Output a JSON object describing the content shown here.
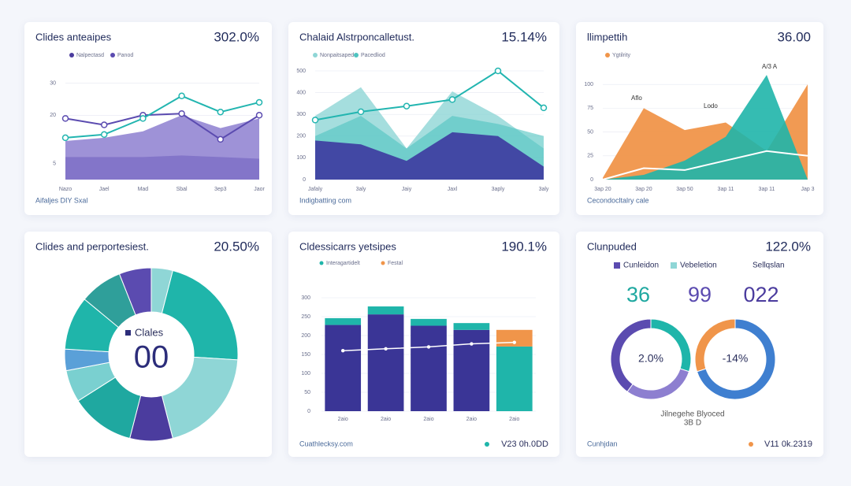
{
  "cards": [
    {
      "title": "Clides anteaipes",
      "metric": "302.0%",
      "footer": "Aifaljes DIY Sxal",
      "chart": {
        "type": "area",
        "ylim": [
          0,
          35
        ],
        "yticks": [
          30,
          20,
          5
        ],
        "grid": true,
        "categories": [
          "Nazo",
          "Jael",
          "Mad",
          "Sbal",
          "3ep3",
          "Jaor"
        ],
        "series": [
          {
            "name": "Nalpectasd",
            "kind": "area",
            "color": "#4b3c9e",
            "opacity": 1,
            "values": [
              7,
              7,
              7,
              7.5,
              7,
              6.5
            ]
          },
          {
            "kind": "area",
            "color": "#8d7fd0",
            "opacity": 0.85,
            "values": [
              12,
              13,
              15,
              20,
              16,
              19
            ]
          },
          {
            "name": "Panod",
            "kind": "line",
            "color": "#5b4bb0",
            "markers": true,
            "values": [
              19,
              17,
              20,
              20.5,
              12.5,
              20
            ]
          },
          {
            "kind": "line",
            "color": "#22b5b0",
            "markers": true,
            "values": [
              13,
              14,
              19,
              26,
              21,
              24
            ]
          }
        ]
      }
    },
    {
      "title": "Chalaid Alstrponcalletust.",
      "metric": "15.14%",
      "footer": "Indigbatting com",
      "chart": {
        "type": "area",
        "ylim": [
          0,
          500
        ],
        "yticks": [
          500,
          400,
          300,
          200,
          100,
          0
        ],
        "grid": true,
        "categories": [
          "Jafaly",
          "3aly",
          "Jaiy",
          "Jaxl",
          "3aply",
          "3aly"
        ],
        "series": [
          {
            "name": "Nonpaitsaped",
            "kind": "area",
            "color": "#8fd6d6",
            "opacity": 0.8,
            "values": [
              293,
              425,
              143,
              406,
              293,
              143
            ]
          },
          {
            "name": "Pacedliod",
            "kind": "area",
            "color": "#4fc3c0",
            "opacity": 0.6,
            "values": [
              200,
              293,
              143,
              293,
              256,
              200
            ]
          },
          {
            "kind": "area",
            "color": "#3d3aa0",
            "opacity": 0.9,
            "values": [
              180,
              162,
              86,
              218,
              200,
              60
            ]
          },
          {
            "kind": "line",
            "color": "#22b5b0",
            "markers": true,
            "values": [
              274,
              312,
              338,
              368,
              500,
              330
            ]
          }
        ]
      }
    },
    {
      "title": "llimpettih",
      "metric": "36.00",
      "footer": "Cecondocltalry cale",
      "chart": {
        "type": "area",
        "ylim": [
          0,
          120
        ],
        "yticks": [
          100,
          75,
          50,
          25,
          0
        ],
        "grid": true,
        "annotations": [
          "A/3 A",
          "Aflo",
          "Lodo"
        ],
        "categories": [
          "3ap 20",
          "3ap 20",
          "3ap 50",
          "3ap 11",
          "3ap 11",
          "Jap 3"
        ],
        "series": [
          {
            "name": "Ygtilrity",
            "kind": "area",
            "color": "#f0954a",
            "opacity": 0.95,
            "values": [
              2,
              75,
              52,
              60,
              30,
              100
            ]
          },
          {
            "kind": "area",
            "color": "#1fb5aa",
            "opacity": 0.9,
            "values": [
              0,
              5,
              20,
              45,
              110,
              0
            ]
          },
          {
            "kind": "line",
            "color": "#ffffff",
            "values": [
              0,
              12,
              10,
              20,
              30,
              25
            ]
          }
        ]
      }
    },
    {
      "title": "Clides and perportesiest.",
      "metric": "20.50%",
      "footer": "",
      "chart": {
        "type": "donut",
        "center_label": "Clales",
        "center_value": "00",
        "values": [
          4,
          22,
          20,
          8,
          12,
          6,
          4,
          10,
          8,
          6
        ],
        "colors": [
          "#8fd6d6",
          "#1fb5aa",
          "#8fd6d6",
          "#4b3c9e",
          "#1fa8a0",
          "#7ad0d0",
          "#5aa0d8",
          "#1fb5aa",
          "#2f9f9a",
          "#5b4bb0"
        ]
      }
    },
    {
      "title": "Cldessicarrs yetsipes",
      "metric": "190.1%",
      "footer": "Cuathlecksy.com",
      "footer_value": "V23 0h.0DD",
      "footer_color": "#1fb5aa",
      "chart": {
        "type": "bar",
        "ylim": [
          0,
          350
        ],
        "yticks": [
          300,
          250,
          200,
          150,
          100,
          50,
          0
        ],
        "grid": true,
        "categories": [
          "2aio",
          "2aio",
          "2aio",
          "2aio",
          "2aio"
        ],
        "series": [
          {
            "kind": "bar",
            "color": "#3a3596",
            "values": [
              228,
              256,
              226,
              215,
              0
            ]
          },
          {
            "name": "Interagartidelt",
            "kind": "bar",
            "color": "#1fb5aa",
            "values": [
              18,
              21,
              18,
              18,
              171
            ]
          },
          {
            "name": "Festal",
            "kind": "bar",
            "color": "#f0954a",
            "values": [
              0,
              0,
              0,
              0,
              44
            ]
          },
          {
            "kind": "line",
            "color": "#ffffff",
            "markers": true,
            "values": [
              160,
              165,
              170,
              178,
              182
            ]
          }
        ]
      }
    },
    {
      "title": "Clunpuded",
      "metric": "122.0%",
      "footer": "Cunhjdan",
      "footer_value": "V11 0k.2319",
      "footer_color": "#f0954a",
      "chart": {
        "type": "rings",
        "legend": [
          "Cunleidon",
          "Vebeletion",
          "Sellqslan"
        ],
        "legend_colors": [
          "#5b4bb0",
          "#8fd6d6",
          "#ffffff"
        ],
        "numbers": [
          "36",
          "99",
          "022"
        ],
        "number_colors": [
          "#1fa8a0",
          "#5b4bb0",
          "#4b3c9e"
        ],
        "caption": "Jilnegehe Blyoced",
        "subcaption": "3B D",
        "rings": [
          {
            "label": "2.0%",
            "values": [
              30,
              30,
              40
            ],
            "colors": [
              "#1fb5aa",
              "#8d7fd0",
              "#5b4bb0"
            ]
          },
          {
            "label": "-14%",
            "values": [
              70,
              30
            ],
            "colors": [
              "#3f7fd0",
              "#f0954a"
            ]
          }
        ]
      }
    }
  ]
}
